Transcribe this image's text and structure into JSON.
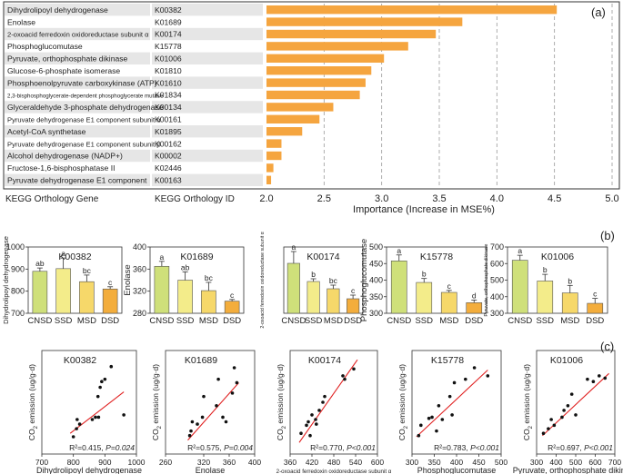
{
  "chart_data": [
    {
      "type": "bar",
      "panel": "(a)",
      "orientation": "horizontal",
      "col_header_gene": "KEGG Orthology Gene",
      "col_header_id": "KEGG Orthology ID",
      "xlabel": "Importance (Increase in MSE%)",
      "xlim": [
        2.0,
        5.0
      ],
      "xticks": [
        "2.0",
        "2.5",
        "3.0",
        "3.5",
        "4.0",
        "4.5",
        "5.0"
      ],
      "bar_color": "#f5a53f",
      "genes": [
        "Dihydrolipoyl dehydrogenase",
        "Enolase",
        "2-oxoacid ferredoxin oxidoreductase subunit α",
        "Phosphoglucomutase",
        "Pyruvate, orthophosphate dikinase",
        "Glucose-6-phosphate isomerase",
        "Phosphoenolpyruvate carboxykinase (ATP)",
        "2,3-bisphosphoglycerate-dependent phosphoglycerate mutase",
        "Glyceraldehyde 3-phosphate dehydrogenase",
        "Pyruvate dehydrogenase E1 component subunit α",
        "Acetyl-CoA synthetase",
        "Pyruvate dehydrogenase E1 component subunit β",
        "Alcohol dehydrogenase (NADP+)",
        "Fructose-1,6-bisphosphatase II",
        "Pyruvate dehydrogenase E1 component"
      ],
      "ids": [
        "K00382",
        "K01689",
        "K00174",
        "K15778",
        "K01006",
        "K01810",
        "K01610",
        "K01834",
        "K00134",
        "K00161",
        "K01895",
        "K00162",
        "K00002",
        "K02446",
        "K00163"
      ],
      "values": [
        4.52,
        3.7,
        3.47,
        3.23,
        3.02,
        2.91,
        2.86,
        2.81,
        2.58,
        2.46,
        2.31,
        2.13,
        2.13,
        2.06,
        2.04
      ]
    },
    {
      "type": "bar",
      "panel": "(b)",
      "categories": [
        "CNSD",
        "SSD",
        "MSD",
        "DSD"
      ],
      "bar_colors": [
        "#cfe07a",
        "#f3ec8a",
        "#f6d86a",
        "#f3ad3c"
      ],
      "panels": [
        {
          "title": "K00382",
          "ylabel": "Dihydrolipoyl dehydrogenase",
          "ylim": [
            700,
            1000
          ],
          "yticks": [
            "700",
            "800",
            "900",
            "1000"
          ],
          "values": [
            890,
            902,
            843,
            810
          ],
          "errors": [
            15,
            48,
            30,
            10
          ],
          "letters": [
            "ab",
            "a",
            "bc",
            "c"
          ]
        },
        {
          "title": "K01689",
          "ylabel": "Enolase",
          "ylim": [
            280,
            400
          ],
          "yticks": [
            "280",
            "320",
            "360",
            "400"
          ],
          "values": [
            365,
            340,
            321,
            302
          ],
          "errors": [
            9,
            15,
            15,
            3
          ],
          "letters": [
            "a",
            "ab",
            "bc",
            "c"
          ]
        },
        {
          "title": "K00174",
          "ylabel": "2-oxoacid ferredoxin oxidoreductase subunit α",
          "ylim": [
            null,
            null
          ],
          "yticks": [],
          "values": [
            null,
            null,
            null,
            null
          ],
          "errors": [
            null,
            null,
            null,
            null
          ],
          "letters": [
            "a",
            "b",
            "bc",
            "c"
          ]
        },
        {
          "title": "K15778",
          "ylabel": "Phosphoglucomutase",
          "ylim": [
            300,
            500
          ],
          "yticks": [
            "300",
            "350",
            "400",
            "450",
            "500"
          ],
          "values": [
            458,
            393,
            363,
            332
          ],
          "errors": [
            18,
            12,
            6,
            8
          ],
          "letters": [
            "a",
            "b",
            "c",
            "d"
          ]
        },
        {
          "title": "K01006",
          "ylabel": "Pyruvate, orthophosphate dikinase",
          "ylim": [
            300,
            700
          ],
          "yticks": [
            "300",
            "400",
            "500",
            "600",
            "700"
          ],
          "values": [
            620,
            495,
            423,
            360
          ],
          "errors": [
            30,
            40,
            45,
            30
          ],
          "letters": [
            "a",
            "b",
            "b",
            "c"
          ]
        }
      ]
    },
    {
      "type": "scatter",
      "panel": "(c)",
      "ylabel_main": "CO",
      "ylabel_sub": "2",
      "ylabel_rest": " emission (ug/g·d)",
      "line_color": "#e02020",
      "panels": [
        {
          "title": "K00382",
          "xlabel": "Dihydrolipoyl dehydrogenase",
          "xlim": [
            700,
            1000
          ],
          "xticks": [
            "700",
            "800",
            "900",
            "1000"
          ],
          "stats": "R²=0.415, P=0.024",
          "r2": "R²=0.415,",
          "pval": "P=0.024",
          "points": [
            [
              800,
              1.5
            ],
            [
              810,
              2.2
            ],
            [
              812,
              3.0
            ],
            [
              820,
              2.6
            ],
            [
              860,
              3.0
            ],
            [
              870,
              3.2
            ],
            [
              880,
              3.2
            ],
            [
              878,
              5.0
            ],
            [
              885,
              5.8
            ],
            [
              890,
              6.3
            ],
            [
              900,
              6.5
            ],
            [
              920,
              7.6
            ],
            [
              960,
              3.4
            ]
          ],
          "fit": [
            [
              790,
              1.8
            ],
            [
              960,
              5.4
            ]
          ]
        },
        {
          "title": "K01689",
          "xlabel": "Enolase",
          "xlim": [
            260,
            400
          ],
          "xticks": [
            "260",
            "320",
            "360",
            "400"
          ],
          "stats": "R²=0.575, P=0.004",
          "r2": "R²=0.575,",
          "pval": "P=0.004",
          "points": [
            [
              298,
              1.6
            ],
            [
              300,
              2.0
            ],
            [
              302,
              2.8
            ],
            [
              310,
              2.6
            ],
            [
              318,
              3.2
            ],
            [
              320,
              5.0
            ],
            [
              340,
              4.2
            ],
            [
              343,
              6.5
            ],
            [
              350,
              3.2
            ],
            [
              355,
              2.8
            ],
            [
              365,
              5.3
            ],
            [
              368,
              7.5
            ],
            [
              372,
              6.2
            ]
          ],
          "fit": [
            [
              295,
              1.2
            ],
            [
              375,
              6.2
            ]
          ]
        },
        {
          "title": "K00174",
          "xlabel": "2-oxoacid ferredoxin oxidoreductase subunit α",
          "xlim": [
            360,
            600
          ],
          "xticks": [
            "360",
            "420",
            "480",
            "540",
            "600"
          ],
          "stats": "R²=0.770, P<0.001",
          "r2": "R²=0.770,",
          "pval": "P<0.001",
          "points": [
            [
              390,
              1.8
            ],
            [
              405,
              2.5
            ],
            [
              410,
              2.8
            ],
            [
              415,
              1.6
            ],
            [
              420,
              3.4
            ],
            [
              430,
              3.0
            ],
            [
              432,
              2.6
            ],
            [
              440,
              3.8
            ],
            [
              450,
              4.5
            ],
            [
              455,
              5.0
            ],
            [
              505,
              6.8
            ],
            [
              510,
              6.5
            ],
            [
              535,
              7.4
            ]
          ],
          "fit": [
            [
              385,
              1.0
            ],
            [
              545,
              8.2
            ]
          ]
        },
        {
          "title": "K15778",
          "xlabel": "Phosphoglucomutase",
          "xlim": [
            300,
            500
          ],
          "xticks": [
            "300",
            "350",
            "400",
            "450",
            "500"
          ],
          "stats": "R²=0.783, P<0.001",
          "r2": "R²=0.783,",
          "pval": "P<0.001",
          "points": [
            [
              315,
              1.6
            ],
            [
              320,
              2.5
            ],
            [
              338,
              3.1
            ],
            [
              345,
              3.2
            ],
            [
              355,
              2.0
            ],
            [
              360,
              4.2
            ],
            [
              368,
              3.0
            ],
            [
              385,
              5.0
            ],
            [
              390,
              3.4
            ],
            [
              395,
              6.2
            ],
            [
              420,
              6.5
            ],
            [
              440,
              7.5
            ],
            [
              470,
              6.8
            ]
          ],
          "fit": [
            [
              310,
              1.5
            ],
            [
              470,
              7.3
            ]
          ]
        },
        {
          "title": "K01006",
          "xlabel": "Pyruvate, orthophosphate dikinase",
          "xlim": [
            300,
            700
          ],
          "xticks": [
            "300",
            "400",
            "500",
            "600",
            "700"
          ],
          "stats": "R²=0.697, P<0.001",
          "r2": "R²=0.697,",
          "pval": "P<0.001",
          "points": [
            [
              335,
              1.8
            ],
            [
              360,
              2.2
            ],
            [
              375,
              3.0
            ],
            [
              390,
              2.5
            ],
            [
              430,
              3.2
            ],
            [
              440,
              3.8
            ],
            [
              460,
              4.2
            ],
            [
              480,
              5.2
            ],
            [
              500,
              3.4
            ],
            [
              560,
              6.5
            ],
            [
              590,
              6.3
            ],
            [
              620,
              6.8
            ],
            [
              650,
              6.6
            ]
          ],
          "fit": [
            [
              330,
              1.6
            ],
            [
              670,
              7.0
            ]
          ]
        }
      ]
    }
  ]
}
